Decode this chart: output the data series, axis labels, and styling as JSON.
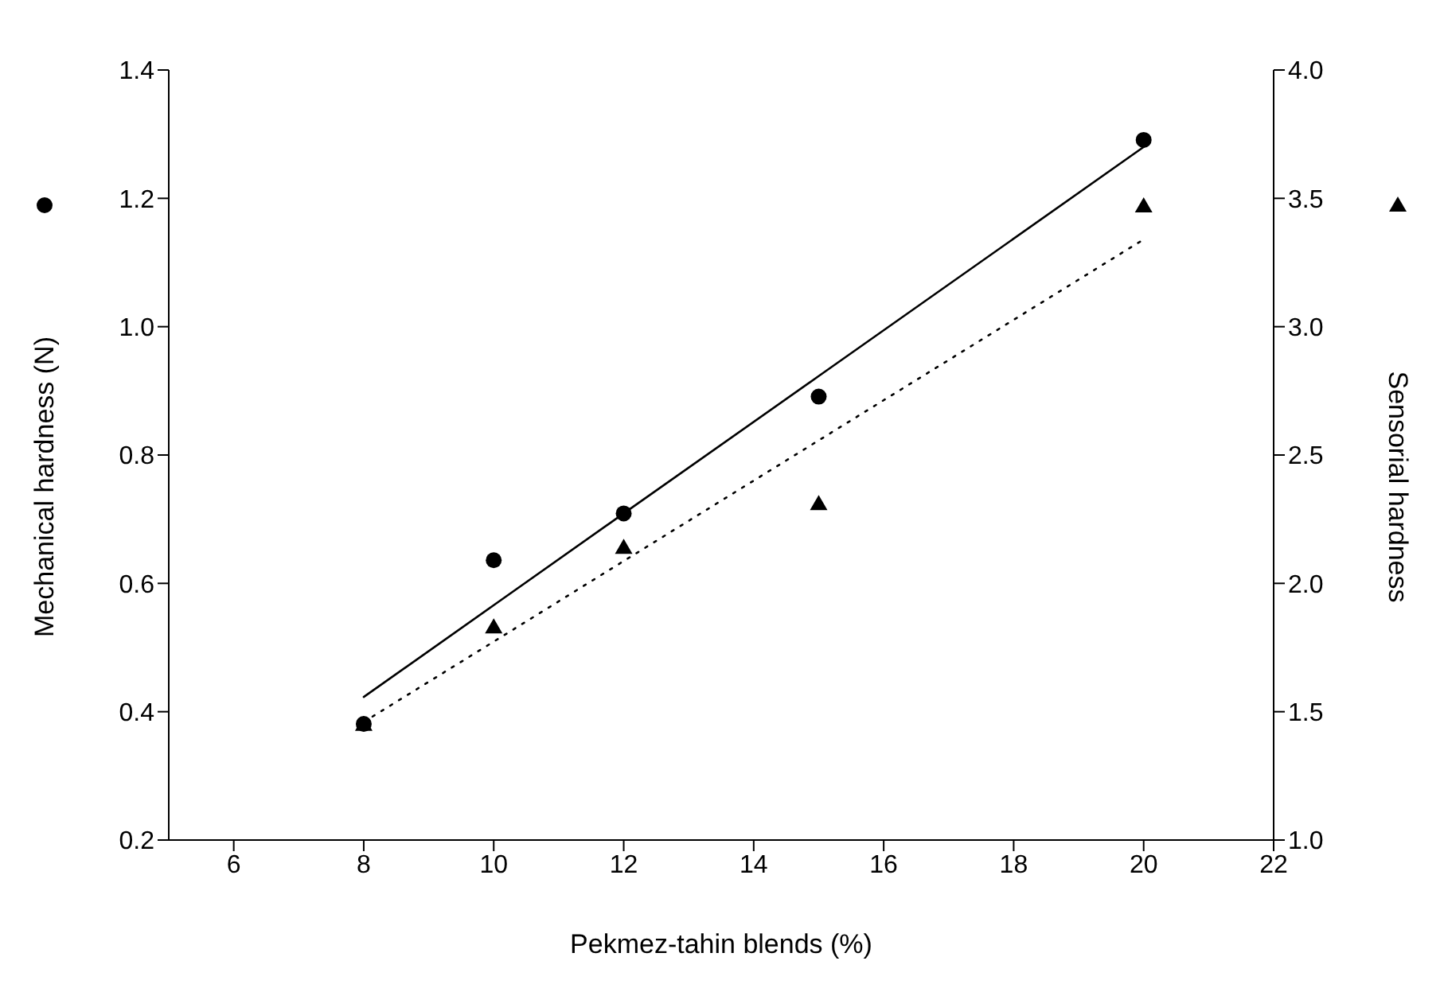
{
  "chart_data": {
    "type": "scatter",
    "xlabel": "Pekmez-tahin blends (%)",
    "ylabel": "Mechanical hardness (N)",
    "y2label": "Sensorial hardness",
    "x": [
      8,
      10,
      12,
      15,
      20
    ],
    "series": [
      {
        "type": "scatter",
        "marker": "circle",
        "color": "#000000",
        "values": [
          0.381,
          0.636,
          0.709,
          0.891,
          1.291
        ]
      },
      {
        "type": "scatter",
        "marker": "triangle",
        "axis": "y2",
        "color": "#000000",
        "values": [
          1.45,
          1.83,
          2.14,
          2.31,
          3.47
        ]
      },
      {
        "type": "line",
        "line_style": "solid",
        "color": "#000000",
        "values": [
          0.423,
          0.566,
          0.709,
          0.923,
          1.28
        ]
      },
      {
        "type": "line",
        "line_style": "dotted",
        "axis": "y2",
        "color": "#000000",
        "values": [
          1.46,
          1.773,
          2.087,
          2.557,
          3.34
        ]
      }
    ],
    "xlim": [
      5,
      22
    ],
    "xticks": [
      6,
      8,
      10,
      12,
      14,
      16,
      18,
      20,
      22
    ],
    "ylim": [
      0.2,
      1.4
    ],
    "yticks": [
      0.2,
      0.4,
      0.6,
      0.8,
      {
        "value": 1,
        "label": "1.0"
      },
      1.2,
      1.4
    ],
    "y2lim": [
      1,
      4
    ],
    "y2ticks": [
      {
        "value": 1,
        "label": "1.0"
      },
      1.5,
      {
        "value": 2,
        "label": "2.0"
      },
      2.5,
      {
        "value": 3,
        "label": "3.0"
      },
      3.5,
      {
        "value": 4,
        "label": "4.0"
      }
    ],
    "grid": false,
    "legend": false
  }
}
